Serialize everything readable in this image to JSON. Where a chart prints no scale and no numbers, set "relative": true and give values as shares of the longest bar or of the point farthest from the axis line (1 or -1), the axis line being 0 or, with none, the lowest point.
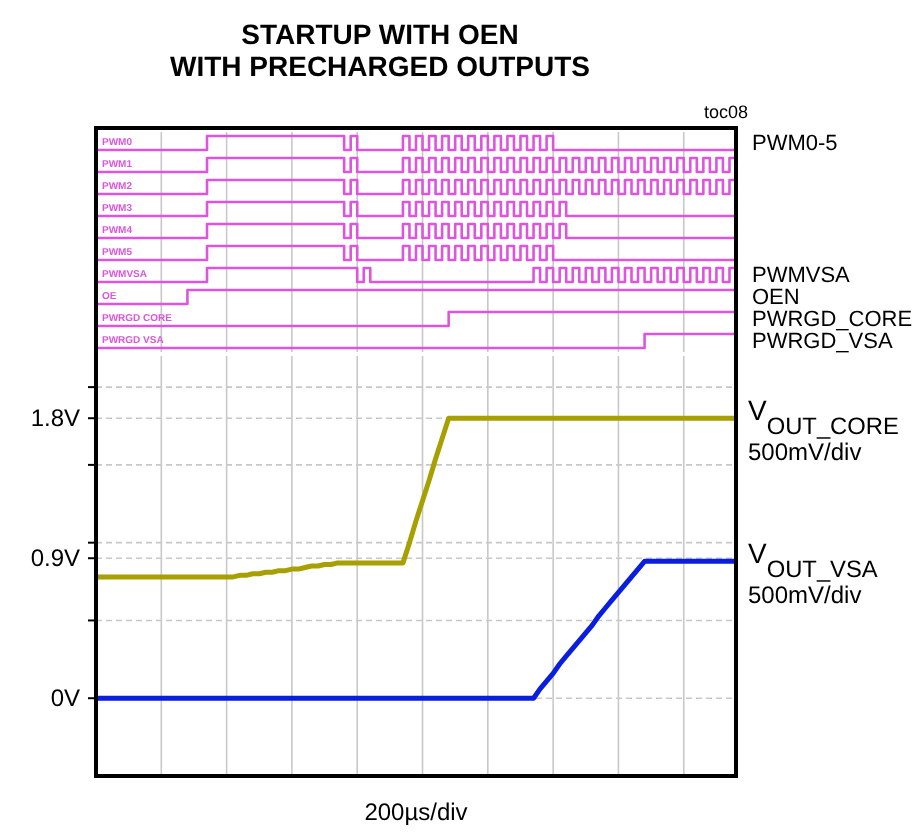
{
  "chart_data": [
    {
      "type": "step",
      "title": "STARTUP WITH OEN\nWITH PRECHARGED OUTPUTS",
      "relative": true,
      "tick_labels": false,
      "grid": "x",
      "annotations": [
        "toc08",
        "PWM0-5"
      ],
      "categories": [
        null,
        null,
        null,
        null,
        null,
        null,
        null,
        null,
        null,
        null,
        null,
        null,
        null,
        null,
        null,
        null,
        null,
        null,
        null,
        null,
        null,
        null,
        null,
        null,
        null,
        null,
        null,
        null,
        null,
        null,
        null,
        null,
        null,
        null,
        null,
        null,
        null,
        null,
        null,
        null,
        null,
        null,
        null,
        null,
        null,
        null,
        null,
        null,
        null,
        null,
        null,
        null,
        null,
        null,
        null,
        null,
        null,
        null,
        null,
        null,
        null,
        null,
        null,
        null,
        null,
        null,
        null,
        null,
        null,
        null,
        null,
        null,
        null,
        null,
        null,
        null,
        null,
        null,
        null,
        null,
        null,
        null,
        null,
        null,
        null,
        null,
        null,
        null,
        null,
        null,
        null,
        null,
        null,
        null,
        null,
        null,
        null,
        null,
        null
      ],
      "series": [
        {
          "name": "PWM0",
          "color": "#dd55dd",
          "values": [
            0,
            0,
            0,
            0,
            0,
            0,
            0,
            0,
            0,
            0,
            0,
            0,
            0,
            0,
            0,
            0,
            0,
            1,
            1,
            1,
            1,
            1,
            1,
            1,
            1,
            1,
            1,
            1,
            1,
            1,
            1,
            1,
            1,
            1,
            1,
            1,
            1,
            1,
            0,
            1,
            0,
            0,
            0,
            0,
            0,
            0,
            0,
            1,
            0,
            1,
            0,
            1,
            0,
            1,
            0,
            1,
            0,
            1,
            0,
            1,
            0,
            1,
            0,
            1,
            0,
            1,
            0,
            1,
            0,
            1,
            0,
            0,
            0,
            0,
            0,
            0,
            0,
            0,
            0,
            0,
            0,
            0,
            0,
            0,
            0,
            0,
            0,
            0,
            0,
            0,
            0,
            0,
            0,
            0,
            0,
            0,
            0,
            0,
            0
          ]
        }
      ]
    },
    {
      "type": "step",
      "relative": true,
      "tick_labels": false,
      "grid": "x",
      "categories": [
        null,
        null,
        null,
        null,
        null,
        null,
        null,
        null,
        null,
        null,
        null,
        null,
        null,
        null,
        null,
        null,
        null,
        null,
        null,
        null,
        null,
        null,
        null,
        null,
        null,
        null,
        null,
        null,
        null,
        null,
        null,
        null,
        null,
        null,
        null,
        null,
        null,
        null,
        null,
        null,
        null,
        null,
        null,
        null,
        null,
        null,
        null,
        null,
        null,
        null,
        null,
        null,
        null,
        null,
        null,
        null,
        null,
        null,
        null,
        null,
        null,
        null,
        null,
        null,
        null,
        null,
        null,
        null,
        null,
        null,
        null,
        null,
        null,
        null,
        null,
        null,
        null,
        null,
        null,
        null,
        null,
        null,
        null,
        null,
        null,
        null,
        null,
        null,
        null,
        null,
        null,
        null,
        null,
        null,
        null,
        null,
        null,
        null,
        null
      ],
      "series": [
        {
          "name": "PWM1",
          "color": "#dd55dd",
          "values": [
            0,
            0,
            0,
            0,
            0,
            0,
            0,
            0,
            0,
            0,
            0,
            0,
            0,
            0,
            0,
            0,
            0,
            1,
            1,
            1,
            1,
            1,
            1,
            1,
            1,
            1,
            1,
            1,
            1,
            1,
            1,
            1,
            1,
            1,
            1,
            1,
            1,
            1,
            0,
            1,
            0,
            0,
            0,
            0,
            0,
            0,
            0,
            1,
            0,
            1,
            0,
            1,
            0,
            1,
            0,
            1,
            0,
            1,
            0,
            1,
            0,
            1,
            0,
            1,
            0,
            1,
            0,
            1,
            0,
            1,
            0,
            1,
            0,
            1,
            0,
            1,
            0,
            1,
            0,
            1,
            0,
            1,
            0,
            1,
            0,
            1,
            0,
            1,
            0,
            1,
            0,
            1,
            0,
            1,
            0,
            1,
            0,
            1,
            0
          ]
        }
      ]
    },
    {
      "type": "step",
      "relative": true,
      "tick_labels": false,
      "grid": "x",
      "categories": [
        null,
        null,
        null,
        null,
        null,
        null,
        null,
        null,
        null,
        null,
        null,
        null,
        null,
        null,
        null,
        null,
        null,
        null,
        null,
        null,
        null,
        null,
        null,
        null,
        null,
        null,
        null,
        null,
        null,
        null,
        null,
        null,
        null,
        null,
        null,
        null,
        null,
        null,
        null,
        null,
        null,
        null,
        null,
        null,
        null,
        null,
        null,
        null,
        null,
        null,
        null,
        null,
        null,
        null,
        null,
        null,
        null,
        null,
        null,
        null,
        null,
        null,
        null,
        null,
        null,
        null,
        null,
        null,
        null,
        null,
        null,
        null,
        null,
        null,
        null,
        null,
        null,
        null,
        null,
        null,
        null,
        null,
        null,
        null,
        null,
        null,
        null,
        null,
        null,
        null,
        null,
        null,
        null,
        null,
        null,
        null,
        null,
        null,
        null
      ],
      "series": [
        {
          "name": "PWM2",
          "color": "#dd55dd",
          "values": [
            0,
            0,
            0,
            0,
            0,
            0,
            0,
            0,
            0,
            0,
            0,
            0,
            0,
            0,
            0,
            0,
            0,
            1,
            1,
            1,
            1,
            1,
            1,
            1,
            1,
            1,
            1,
            1,
            1,
            1,
            1,
            1,
            1,
            1,
            1,
            1,
            1,
            1,
            0,
            1,
            0,
            0,
            0,
            0,
            0,
            0,
            0,
            1,
            0,
            1,
            0,
            1,
            0,
            1,
            0,
            1,
            0,
            1,
            0,
            1,
            0,
            1,
            0,
            1,
            0,
            1,
            0,
            1,
            0,
            1,
            0,
            1,
            0,
            1,
            0,
            1,
            0,
            1,
            0,
            1,
            0,
            1,
            0,
            1,
            0,
            1,
            0,
            1,
            0,
            1,
            0,
            1,
            0,
            1,
            0,
            1,
            0,
            1,
            0
          ]
        }
      ]
    },
    {
      "type": "step",
      "relative": true,
      "tick_labels": false,
      "grid": "x",
      "categories": [
        null,
        null,
        null,
        null,
        null,
        null,
        null,
        null,
        null,
        null,
        null,
        null,
        null,
        null,
        null,
        null,
        null,
        null,
        null,
        null,
        null,
        null,
        null,
        null,
        null,
        null,
        null,
        null,
        null,
        null,
        null,
        null,
        null,
        null,
        null,
        null,
        null,
        null,
        null,
        null,
        null,
        null,
        null,
        null,
        null,
        null,
        null,
        null,
        null,
        null,
        null,
        null,
        null,
        null,
        null,
        null,
        null,
        null,
        null,
        null,
        null,
        null,
        null,
        null,
        null,
        null,
        null,
        null,
        null,
        null,
        null,
        null,
        null,
        null,
        null,
        null,
        null,
        null,
        null,
        null,
        null,
        null,
        null,
        null,
        null,
        null,
        null,
        null,
        null,
        null,
        null,
        null,
        null,
        null,
        null,
        null,
        null,
        null,
        null
      ],
      "series": [
        {
          "name": "PWM3",
          "color": "#dd55dd",
          "values": [
            0,
            0,
            0,
            0,
            0,
            0,
            0,
            0,
            0,
            0,
            0,
            0,
            0,
            0,
            0,
            0,
            0,
            1,
            1,
            1,
            1,
            1,
            1,
            1,
            1,
            1,
            1,
            1,
            1,
            1,
            1,
            1,
            1,
            1,
            1,
            1,
            1,
            1,
            0,
            1,
            0,
            0,
            0,
            0,
            0,
            0,
            0,
            1,
            0,
            1,
            0,
            1,
            0,
            1,
            0,
            1,
            0,
            1,
            0,
            1,
            0,
            1,
            0,
            1,
            0,
            1,
            0,
            1,
            0,
            1,
            0,
            1,
            0,
            0,
            0,
            0,
            0,
            0,
            0,
            0,
            0,
            0,
            0,
            0,
            0,
            0,
            0,
            0,
            0,
            0,
            0,
            0,
            0,
            0,
            0,
            0,
            0,
            0,
            0
          ]
        }
      ]
    },
    {
      "type": "step",
      "relative": true,
      "tick_labels": false,
      "grid": "x",
      "categories": [
        null,
        null,
        null,
        null,
        null,
        null,
        null,
        null,
        null,
        null,
        null,
        null,
        null,
        null,
        null,
        null,
        null,
        null,
        null,
        null,
        null,
        null,
        null,
        null,
        null,
        null,
        null,
        null,
        null,
        null,
        null,
        null,
        null,
        null,
        null,
        null,
        null,
        null,
        null,
        null,
        null,
        null,
        null,
        null,
        null,
        null,
        null,
        null,
        null,
        null,
        null,
        null,
        null,
        null,
        null,
        null,
        null,
        null,
        null,
        null,
        null,
        null,
        null,
        null,
        null,
        null,
        null,
        null,
        null,
        null,
        null,
        null,
        null,
        null,
        null,
        null,
        null,
        null,
        null,
        null,
        null,
        null,
        null,
        null,
        null,
        null,
        null,
        null,
        null,
        null,
        null,
        null,
        null,
        null,
        null,
        null,
        null,
        null,
        null
      ],
      "series": [
        {
          "name": "PWM4",
          "color": "#dd55dd",
          "values": [
            0,
            0,
            0,
            0,
            0,
            0,
            0,
            0,
            0,
            0,
            0,
            0,
            0,
            0,
            0,
            0,
            0,
            1,
            1,
            1,
            1,
            1,
            1,
            1,
            1,
            1,
            1,
            1,
            1,
            1,
            1,
            1,
            1,
            1,
            1,
            1,
            1,
            1,
            0,
            1,
            0,
            0,
            0,
            0,
            0,
            0,
            0,
            1,
            0,
            1,
            0,
            1,
            0,
            1,
            0,
            1,
            0,
            1,
            0,
            1,
            0,
            1,
            0,
            1,
            0,
            1,
            0,
            1,
            0,
            1,
            0,
            1,
            0,
            0,
            0,
            0,
            0,
            0,
            0,
            0,
            0,
            0,
            0,
            0,
            0,
            0,
            0,
            0,
            0,
            0,
            0,
            0,
            0,
            0,
            0,
            0,
            0,
            0,
            0
          ]
        }
      ]
    },
    {
      "type": "step",
      "relative": true,
      "tick_labels": false,
      "grid": "x",
      "categories": [
        null,
        null,
        null,
        null,
        null,
        null,
        null,
        null,
        null,
        null,
        null,
        null,
        null,
        null,
        null,
        null,
        null,
        null,
        null,
        null,
        null,
        null,
        null,
        null,
        null,
        null,
        null,
        null,
        null,
        null,
        null,
        null,
        null,
        null,
        null,
        null,
        null,
        null,
        null,
        null,
        null,
        null,
        null,
        null,
        null,
        null,
        null,
        null,
        null,
        null,
        null,
        null,
        null,
        null,
        null,
        null,
        null,
        null,
        null,
        null,
        null,
        null,
        null,
        null,
        null,
        null,
        null,
        null,
        null,
        null,
        null,
        null,
        null,
        null,
        null,
        null,
        null,
        null,
        null,
        null,
        null,
        null,
        null,
        null,
        null,
        null,
        null,
        null,
        null,
        null,
        null,
        null,
        null,
        null,
        null,
        null,
        null,
        null,
        null
      ],
      "series": [
        {
          "name": "PWM5",
          "color": "#dd55dd",
          "values": [
            0,
            0,
            0,
            0,
            0,
            0,
            0,
            0,
            0,
            0,
            0,
            0,
            0,
            0,
            0,
            0,
            0,
            1,
            1,
            1,
            1,
            1,
            1,
            1,
            1,
            1,
            1,
            1,
            1,
            1,
            1,
            1,
            1,
            1,
            1,
            1,
            1,
            1,
            0,
            1,
            0,
            0,
            0,
            0,
            0,
            0,
            0,
            1,
            0,
            1,
            0,
            1,
            0,
            1,
            0,
            1,
            0,
            1,
            0,
            1,
            0,
            1,
            0,
            1,
            0,
            1,
            0,
            1,
            0,
            1,
            0,
            0,
            0,
            0,
            0,
            0,
            0,
            0,
            0,
            0,
            0,
            0,
            0,
            0,
            0,
            0,
            0,
            0,
            0,
            0,
            0,
            0,
            0,
            0,
            0,
            0,
            0,
            0,
            0
          ]
        }
      ]
    },
    {
      "type": "step",
      "relative": true,
      "tick_labels": false,
      "grid": "x",
      "annotations": [
        "PWMVSA"
      ],
      "categories": [
        null,
        null,
        null,
        null,
        null,
        null,
        null,
        null,
        null,
        null,
        null,
        null,
        null,
        null,
        null,
        null,
        null,
        null,
        null,
        null,
        null,
        null,
        null,
        null,
        null,
        null,
        null,
        null,
        null,
        null,
        null,
        null,
        null,
        null,
        null,
        null,
        null,
        null,
        null,
        null,
        null,
        null,
        null,
        null,
        null,
        null,
        null,
        null,
        null,
        null,
        null,
        null,
        null,
        null,
        null,
        null,
        null,
        null,
        null,
        null,
        null,
        null,
        null,
        null,
        null,
        null,
        null,
        null,
        null,
        null,
        null,
        null,
        null,
        null,
        null,
        null,
        null,
        null,
        null,
        null,
        null,
        null,
        null,
        null,
        null,
        null,
        null,
        null,
        null,
        null,
        null,
        null,
        null,
        null,
        null,
        null,
        null,
        null,
        null
      ],
      "series": [
        {
          "name": "PWMVSA",
          "color": "#dd55dd",
          "values": [
            0,
            0,
            0,
            0,
            0,
            0,
            0,
            0,
            0,
            0,
            0,
            0,
            0,
            0,
            0,
            0,
            0,
            1,
            1,
            1,
            1,
            1,
            1,
            1,
            1,
            1,
            1,
            1,
            1,
            1,
            1,
            1,
            1,
            1,
            1,
            1,
            1,
            1,
            1,
            1,
            0,
            1,
            0,
            0,
            0,
            0,
            0,
            0,
            0,
            0,
            0,
            0,
            0,
            0,
            0,
            0,
            0,
            0,
            0,
            0,
            0,
            0,
            0,
            0,
            0,
            0,
            0,
            1,
            0,
            1,
            0,
            1,
            0,
            1,
            0,
            1,
            0,
            1,
            0,
            1,
            0,
            1,
            0,
            1,
            0,
            1,
            0,
            1,
            0,
            1,
            0,
            1,
            0,
            1,
            0,
            1,
            0,
            1,
            0
          ]
        }
      ]
    },
    {
      "type": "step",
      "relative": true,
      "tick_labels": false,
      "grid": "x",
      "annotations": [
        "OEN"
      ],
      "categories": [
        null,
        null,
        null,
        null,
        null,
        null,
        null,
        null,
        null,
        null,
        null,
        null,
        null,
        null,
        null,
        null,
        null,
        null,
        null,
        null,
        null,
        null,
        null,
        null,
        null,
        null,
        null,
        null,
        null,
        null,
        null,
        null,
        null,
        null,
        null,
        null,
        null,
        null,
        null,
        null,
        null,
        null,
        null,
        null,
        null,
        null,
        null,
        null,
        null,
        null,
        null,
        null,
        null,
        null,
        null,
        null,
        null,
        null,
        null,
        null,
        null,
        null,
        null,
        null,
        null,
        null,
        null,
        null,
        null,
        null,
        null,
        null,
        null,
        null,
        null,
        null,
        null,
        null,
        null,
        null,
        null,
        null,
        null,
        null,
        null,
        null,
        null,
        null,
        null,
        null,
        null,
        null,
        null,
        null,
        null,
        null,
        null,
        null,
        null
      ],
      "series": [
        {
          "name": "OE",
          "color": "#dd55dd",
          "values": [
            0,
            0,
            0,
            0,
            0,
            0,
            0,
            0,
            0,
            0,
            0,
            0,
            0,
            0,
            1,
            1,
            1,
            1,
            1,
            1,
            1,
            1,
            1,
            1,
            1,
            1,
            1,
            1,
            1,
            1,
            1,
            1,
            1,
            1,
            1,
            1,
            1,
            1,
            1,
            1,
            1,
            1,
            1,
            1,
            1,
            1,
            1,
            1,
            1,
            1,
            1,
            1,
            1,
            1,
            1,
            1,
            1,
            1,
            1,
            1,
            1,
            1,
            1,
            1,
            1,
            1,
            1,
            1,
            1,
            1,
            1,
            1,
            1,
            1,
            1,
            1,
            1,
            1,
            1,
            1,
            1,
            1,
            1,
            1,
            1,
            1,
            1,
            1,
            1,
            1,
            1,
            1,
            1,
            1,
            1,
            1,
            1,
            1,
            1
          ]
        }
      ]
    },
    {
      "type": "step",
      "relative": true,
      "tick_labels": false,
      "grid": "x",
      "annotations": [
        "PWRGD_CORE"
      ],
      "categories": [
        null,
        null,
        null,
        null,
        null,
        null,
        null,
        null,
        null,
        null,
        null,
        null,
        null,
        null,
        null,
        null,
        null,
        null,
        null,
        null,
        null,
        null,
        null,
        null,
        null,
        null,
        null,
        null,
        null,
        null,
        null,
        null,
        null,
        null,
        null,
        null,
        null,
        null,
        null,
        null,
        null,
        null,
        null,
        null,
        null,
        null,
        null,
        null,
        null,
        null,
        null,
        null,
        null,
        null,
        null,
        null,
        null,
        null,
        null,
        null,
        null,
        null,
        null,
        null,
        null,
        null,
        null,
        null,
        null,
        null,
        null,
        null,
        null,
        null,
        null,
        null,
        null,
        null,
        null,
        null,
        null,
        null,
        null,
        null,
        null,
        null,
        null,
        null,
        null,
        null,
        null,
        null,
        null,
        null,
        null,
        null,
        null,
        null,
        null
      ],
      "series": [
        {
          "name": "PWRGD CORE",
          "color": "#dd55dd",
          "values": [
            0,
            0,
            0,
            0,
            0,
            0,
            0,
            0,
            0,
            0,
            0,
            0,
            0,
            0,
            0,
            0,
            0,
            0,
            0,
            0,
            0,
            0,
            0,
            0,
            0,
            0,
            0,
            0,
            0,
            0,
            0,
            0,
            0,
            0,
            0,
            0,
            0,
            0,
            0,
            0,
            0,
            0,
            0,
            0,
            0,
            0,
            0,
            0,
            0,
            0,
            0,
            0,
            0,
            0,
            1,
            1,
            1,
            1,
            1,
            1,
            1,
            1,
            1,
            1,
            1,
            1,
            1,
            1,
            1,
            1,
            1,
            1,
            1,
            1,
            1,
            1,
            1,
            1,
            1,
            1,
            1,
            1,
            1,
            1,
            1,
            1,
            1,
            1,
            1,
            1,
            1,
            1,
            1,
            1,
            1,
            1,
            1,
            1,
            1
          ]
        }
      ]
    },
    {
      "type": "step",
      "relative": true,
      "tick_labels": false,
      "grid": "x",
      "annotations": [
        "PWRGD_VSA"
      ],
      "categories": [
        null,
        null,
        null,
        null,
        null,
        null,
        null,
        null,
        null,
        null,
        null,
        null,
        null,
        null,
        null,
        null,
        null,
        null,
        null,
        null,
        null,
        null,
        null,
        null,
        null,
        null,
        null,
        null,
        null,
        null,
        null,
        null,
        null,
        null,
        null,
        null,
        null,
        null,
        null,
        null,
        null,
        null,
        null,
        null,
        null,
        null,
        null,
        null,
        null,
        null,
        null,
        null,
        null,
        null,
        null,
        null,
        null,
        null,
        null,
        null,
        null,
        null,
        null,
        null,
        null,
        null,
        null,
        null,
        null,
        null,
        null,
        null,
        null,
        null,
        null,
        null,
        null,
        null,
        null,
        null,
        null,
        null,
        null,
        null,
        null,
        null,
        null,
        null,
        null,
        null,
        null,
        null,
        null,
        null,
        null,
        null,
        null,
        null,
        null
      ],
      "series": [
        {
          "name": "PWRGD VSA",
          "color": "#dd55dd",
          "values": [
            0,
            0,
            0,
            0,
            0,
            0,
            0,
            0,
            0,
            0,
            0,
            0,
            0,
            0,
            0,
            0,
            0,
            0,
            0,
            0,
            0,
            0,
            0,
            0,
            0,
            0,
            0,
            0,
            0,
            0,
            0,
            0,
            0,
            0,
            0,
            0,
            0,
            0,
            0,
            0,
            0,
            0,
            0,
            0,
            0,
            0,
            0,
            0,
            0,
            0,
            0,
            0,
            0,
            0,
            0,
            0,
            0,
            0,
            0,
            0,
            0,
            0,
            0,
            0,
            0,
            0,
            0,
            0,
            0,
            0,
            0,
            0,
            0,
            0,
            0,
            0,
            0,
            0,
            0,
            0,
            0,
            0,
            0,
            0,
            1,
            1,
            1,
            1,
            1,
            1,
            1,
            1,
            1,
            1,
            1,
            1,
            1,
            1,
            1
          ]
        }
      ]
    },
    {
      "type": "line",
      "xlabel": "200µs/div",
      "tick_labels": "y",
      "grid": true,
      "legend": false,
      "ylim": [
        -0.5,
        2.2
      ],
      "yticks": [
        {
          "value": 0,
          "label": "0V"
        },
        {
          "value": 0.5,
          "label": null
        },
        {
          "value": 0.9,
          "label": "0.9V"
        },
        {
          "value": 1,
          "label": null
        },
        {
          "value": 1.5,
          "label": null
        },
        {
          "value": 1.8,
          "label": "1.8V"
        },
        {
          "value": 2,
          "label": null
        }
      ],
      "categories": [
        null,
        null,
        null,
        null,
        null,
        null,
        null,
        null,
        null,
        null,
        null,
        null,
        null,
        null,
        null,
        null,
        null,
        null,
        null,
        null,
        null,
        null,
        null,
        null,
        null,
        null,
        null,
        null,
        null,
        null,
        null,
        null,
        null,
        null,
        null,
        null,
        null,
        null,
        null,
        null,
        null,
        null,
        null,
        null,
        null,
        null,
        null,
        null,
        null,
        null,
        null,
        null,
        null,
        null,
        null,
        null,
        null,
        null,
        null,
        null,
        null,
        null,
        null,
        null,
        null,
        null,
        null,
        null,
        null,
        null,
        null,
        null,
        null,
        null,
        null,
        null,
        null,
        null,
        null,
        null,
        null,
        null,
        null,
        null,
        null,
        null,
        null,
        null,
        null,
        null,
        null,
        null,
        null,
        null,
        null,
        null,
        null,
        null,
        null
      ],
      "series": [
        {
          "name": "V$_{OUT_CORE}$",
          "color": "#a8a000",
          "values": [
            0.78,
            0.78,
            0.78,
            0.78,
            0.78,
            0.78,
            0.78,
            0.78,
            0.78,
            0.78,
            0.78,
            0.78,
            0.78,
            0.78,
            0.78,
            0.78,
            0.78,
            0.78,
            0.78,
            0.78,
            0.78,
            0.78,
            0.79,
            0.79,
            0.8,
            0.8,
            0.81,
            0.81,
            0.82,
            0.82,
            0.83,
            0.83,
            0.84,
            0.85,
            0.85,
            0.86,
            0.86,
            0.87,
            0.87,
            0.87,
            0.87,
            0.87,
            0.87,
            0.87,
            0.87,
            0.87,
            0.87,
            0.87,
            1.0,
            1.14,
            1.27,
            1.4,
            1.54,
            1.67,
            1.8,
            1.8,
            1.8,
            1.8,
            1.8,
            1.8,
            1.8,
            1.8,
            1.8,
            1.8,
            1.8,
            1.8,
            1.8,
            1.8,
            1.8,
            1.8,
            1.8,
            1.8,
            1.8,
            1.8,
            1.8,
            1.8,
            1.8,
            1.8,
            1.8,
            1.8,
            1.8,
            1.8,
            1.8,
            1.8,
            1.8,
            1.8,
            1.8,
            1.8,
            1.8,
            1.8,
            1.8,
            1.8,
            1.8,
            1.8,
            1.8,
            1.8,
            1.8,
            1.8,
            1.8
          ]
        },
        {
          "name": "V$_{OUT_VSA}$",
          "color": "#0a1ee0",
          "values": [
            0,
            0,
            0,
            0,
            0,
            0,
            0,
            0,
            0,
            0,
            0,
            0,
            0,
            0,
            0,
            0,
            0,
            0,
            0,
            0,
            0,
            0,
            0,
            0,
            0,
            0,
            0,
            0,
            0,
            0,
            0,
            0,
            0,
            0,
            0,
            0,
            0,
            0,
            0,
            0,
            0,
            0,
            0,
            0,
            0,
            0,
            0,
            0,
            0,
            0,
            0,
            0,
            0,
            0,
            0,
            0,
            0,
            0,
            0,
            0,
            0,
            0,
            0,
            0,
            0,
            0,
            0,
            0,
            0.06,
            0.11,
            0.16,
            0.22,
            0.27,
            0.32,
            0.37,
            0.42,
            0.47,
            0.53,
            0.58,
            0.63,
            0.68,
            0.73,
            0.78,
            0.83,
            0.88,
            0.88,
            0.88,
            0.88,
            0.88,
            0.88,
            0.88,
            0.88,
            0.88,
            0.88,
            0.88,
            0.88,
            0.88,
            0.88,
            0.88
          ]
        }
      ],
      "annotations": [
        "500mV/div",
        "500mV/div"
      ]
    }
  ]
}
